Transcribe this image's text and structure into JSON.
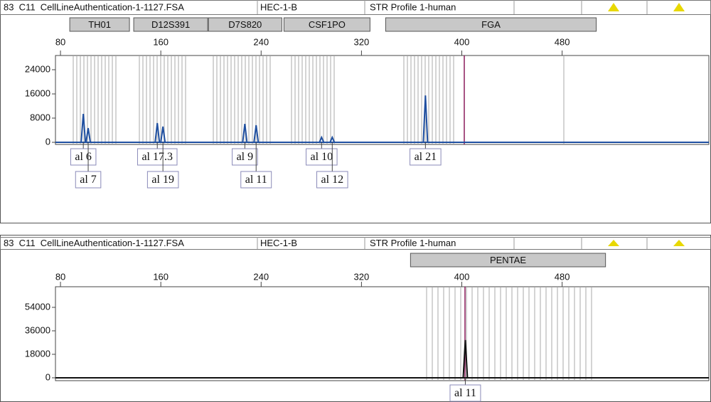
{
  "chart_data": [
    {
      "type": "peak",
      "header": [
        "83  C11  CellLineAuthentication-1-1127.FSA",
        "HEC-1-B",
        "STR Profile 1-human"
      ],
      "markers": [
        {
          "name": "TH01",
          "range": [
            87.4,
            135
          ]
        },
        {
          "name": "D12S391",
          "range": [
            138.4,
            197.4
          ]
        },
        {
          "name": "D7S820",
          "range": [
            198,
            256.5
          ]
        },
        {
          "name": "CSF1PO",
          "range": [
            258.2,
            326.8
          ]
        },
        {
          "name": "FGA",
          "range": [
            339.3,
            507.2
          ]
        }
      ],
      "xlim": [
        76,
        597
      ],
      "xticks": [
        80,
        160,
        240,
        320,
        400,
        480
      ],
      "ylim": [
        -700,
        28700
      ],
      "yticks": [
        0,
        8000,
        16000,
        24000
      ],
      "series": [
        {
          "color": "#1f4fa0",
          "x": [
            98.2,
            102.1,
            157.2,
            161.7,
            227,
            236,
            288.2,
            296.7,
            371
          ],
          "values": [
            9400,
            4700,
            6350,
            5200,
            6100,
            5650,
            1650,
            1650,
            15500
          ],
          "labels": [
            "al 6",
            "al 7",
            "al 17.3",
            "al 19",
            "al 9",
            "al 11",
            "al 10",
            "al 12",
            "al 21"
          ]
        }
      ]
    },
    {
      "type": "peak",
      "header": [
        "83  C11  CellLineAuthentication-1-1127.FSA",
        "HEC-1-B",
        "STR Profile 1-human"
      ],
      "markers": [
        {
          "name": "PENTAE",
          "range": [
            359.1,
            514.6
          ]
        }
      ],
      "xlim": [
        76,
        597
      ],
      "xticks": [
        80,
        160,
        240,
        320,
        400,
        480
      ],
      "ylim": [
        -2200,
        69800
      ],
      "yticks": [
        0,
        18000,
        36000,
        54000
      ],
      "series": [
        {
          "color": "#111111",
          "x": [
            402.8
          ],
          "values": [
            28900
          ],
          "labels": [
            "al 11"
          ]
        }
      ]
    }
  ]
}
